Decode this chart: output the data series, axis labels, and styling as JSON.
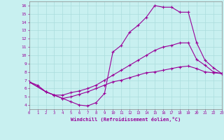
{
  "xlabel": "Windchill (Refroidissement éolien,°C)",
  "bg_color": "#c8f0f0",
  "grid_color": "#aadddd",
  "line_color": "#990099",
  "line1_x": [
    0,
    1,
    2,
    3,
    4,
    5,
    6,
    7,
    8,
    9,
    10,
    11,
    12,
    13,
    14,
    15,
    16,
    17,
    18,
    19,
    20,
    21,
    22,
    23
  ],
  "line1_y": [
    6.8,
    6.4,
    5.6,
    5.2,
    4.8,
    4.4,
    4.0,
    3.9,
    4.3,
    5.4,
    10.4,
    11.2,
    12.8,
    13.6,
    14.6,
    16.0,
    15.8,
    15.8,
    15.2,
    15.2,
    11.5,
    9.4,
    8.5,
    7.8
  ],
  "line2_x": [
    0,
    2,
    3,
    4,
    5,
    6,
    7,
    8,
    9,
    10,
    11,
    12,
    13,
    14,
    15,
    16,
    17,
    18,
    19,
    20,
    21,
    22,
    23
  ],
  "line2_y": [
    6.8,
    5.6,
    5.2,
    5.2,
    5.5,
    5.7,
    6.0,
    6.4,
    7.0,
    7.6,
    8.2,
    8.8,
    9.4,
    10.0,
    10.6,
    11.0,
    11.2,
    11.5,
    11.5,
    9.5,
    8.8,
    8.0,
    7.8
  ],
  "line3_x": [
    0,
    2,
    3,
    4,
    5,
    6,
    7,
    8,
    9,
    10,
    11,
    12,
    13,
    14,
    15,
    16,
    17,
    18,
    19,
    20,
    21,
    22,
    23
  ],
  "line3_y": [
    6.8,
    5.6,
    5.2,
    4.8,
    5.0,
    5.3,
    5.6,
    6.0,
    6.4,
    6.8,
    7.0,
    7.3,
    7.6,
    7.9,
    8.0,
    8.2,
    8.4,
    8.6,
    8.7,
    8.4,
    8.0,
    7.9,
    7.8
  ],
  "xlim": [
    0,
    23
  ],
  "ylim": [
    3.5,
    16.5
  ],
  "yticks": [
    4,
    5,
    6,
    7,
    8,
    9,
    10,
    11,
    12,
    13,
    14,
    15,
    16
  ],
  "xticks": [
    0,
    1,
    2,
    3,
    4,
    5,
    6,
    7,
    8,
    9,
    10,
    11,
    12,
    13,
    14,
    15,
    16,
    17,
    18,
    19,
    20,
    21,
    22,
    23
  ],
  "markersize": 3,
  "linewidth": 0.8
}
